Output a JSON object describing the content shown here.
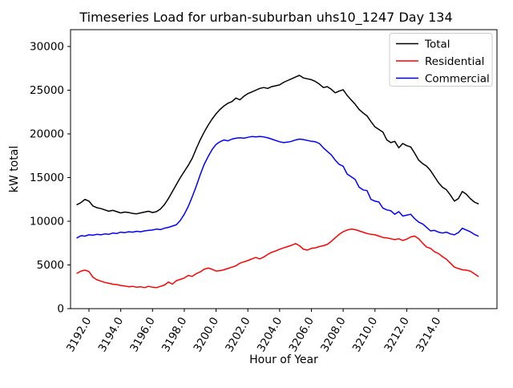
{
  "chart_data": {
    "type": "line",
    "title": "Timeseries Load for urban-suburban uhs10_1247  Day 134",
    "xlabel": "Hour of Year",
    "ylabel": "kW total",
    "grid": false,
    "legend_position": "upper right",
    "x_start": 3191.25,
    "x_step": 0.25,
    "xlim": [
      3190.84,
      3217.68
    ],
    "ylim": [
      0,
      31925
    ],
    "x_ticks": [
      3192,
      3194,
      3196,
      3198,
      3200,
      3202,
      3204,
      3206,
      3208,
      3210,
      3212,
      3214
    ],
    "x_tick_labels": [
      "3192.0",
      "3194.0",
      "3196.0",
      "3198.0",
      "3200.0",
      "3202.0",
      "3204.0",
      "3206.0",
      "3208.0",
      "3210.0",
      "3212.0",
      "3214.0"
    ],
    "y_ticks": [
      0,
      5000,
      10000,
      15000,
      20000,
      25000,
      30000
    ],
    "y_tick_labels": [
      "0",
      "5000",
      "10000",
      "15000",
      "20000",
      "25000",
      "30000"
    ],
    "series": [
      {
        "name": "Total",
        "color": "#000000",
        "values": [
          11900,
          12150,
          12500,
          12300,
          11750,
          11550,
          11450,
          11300,
          11150,
          11250,
          11100,
          10950,
          11050,
          11000,
          10900,
          10850,
          10950,
          11050,
          11150,
          11000,
          11100,
          11400,
          11900,
          12600,
          13400,
          14200,
          15000,
          15700,
          16400,
          17200,
          18300,
          19300,
          20200,
          21000,
          21700,
          22300,
          22800,
          23200,
          23500,
          23700,
          24100,
          23900,
          24300,
          24600,
          24800,
          25000,
          25200,
          25300,
          25200,
          25400,
          25500,
          25600,
          25900,
          26100,
          26300,
          26500,
          26700,
          26400,
          26300,
          26200,
          26000,
          25700,
          25300,
          25400,
          25100,
          24700,
          24900,
          25050,
          24400,
          23900,
          23400,
          22800,
          22400,
          22050,
          21400,
          20800,
          20500,
          20200,
          19300,
          19000,
          19150,
          18400,
          18900,
          18650,
          18500,
          17800,
          17000,
          16600,
          16300,
          15800,
          15100,
          14400,
          13900,
          13600,
          13000,
          12300,
          12600,
          13400,
          13100,
          12600,
          12200,
          12000
        ]
      },
      {
        "name": "Residential",
        "color": "#ff0000",
        "values": [
          4050,
          4300,
          4400,
          4250,
          3600,
          3300,
          3150,
          3000,
          2900,
          2800,
          2750,
          2650,
          2600,
          2500,
          2550,
          2450,
          2500,
          2400,
          2550,
          2450,
          2400,
          2550,
          2700,
          3050,
          2800,
          3200,
          3350,
          3500,
          3800,
          3700,
          4000,
          4200,
          4500,
          4650,
          4500,
          4300,
          4350,
          4450,
          4600,
          4750,
          4900,
          5200,
          5350,
          5500,
          5700,
          5850,
          5700,
          5900,
          6200,
          6450,
          6600,
          6800,
          6950,
          7100,
          7250,
          7450,
          7200,
          6800,
          6700,
          6900,
          6950,
          7100,
          7200,
          7350,
          7700,
          8100,
          8500,
          8800,
          9000,
          9100,
          9050,
          8900,
          8750,
          8600,
          8500,
          8450,
          8300,
          8150,
          8100,
          8000,
          7900,
          8000,
          7800,
          7950,
          8200,
          8300,
          8000,
          7500,
          7050,
          6900,
          6500,
          6300,
          5950,
          5650,
          5200,
          4750,
          4600,
          4450,
          4400,
          4300,
          4000,
          3700
        ]
      },
      {
        "name": "Commercial",
        "color": "#0000ff",
        "values": [
          8100,
          8350,
          8300,
          8450,
          8400,
          8500,
          8450,
          8550,
          8500,
          8650,
          8600,
          8750,
          8700,
          8800,
          8750,
          8850,
          8800,
          8900,
          8950,
          9000,
          9100,
          9050,
          9200,
          9300,
          9450,
          9600,
          10100,
          10800,
          11700,
          12800,
          14000,
          15300,
          16500,
          17400,
          18200,
          18800,
          19100,
          19300,
          19200,
          19400,
          19500,
          19550,
          19500,
          19600,
          19700,
          19650,
          19700,
          19650,
          19550,
          19400,
          19250,
          19100,
          19000,
          19050,
          19150,
          19300,
          19400,
          19350,
          19250,
          19150,
          19100,
          18900,
          18400,
          18000,
          17600,
          17000,
          16500,
          16300,
          15400,
          15100,
          14800,
          13900,
          13600,
          13500,
          12500,
          12300,
          12200,
          11500,
          11300,
          11200,
          10800,
          11100,
          10600,
          10700,
          10800,
          10300,
          9900,
          9700,
          9300,
          8900,
          8950,
          8750,
          8650,
          8750,
          8550,
          8450,
          8700,
          9200,
          9000,
          8800,
          8500,
          8300
        ]
      }
    ]
  }
}
